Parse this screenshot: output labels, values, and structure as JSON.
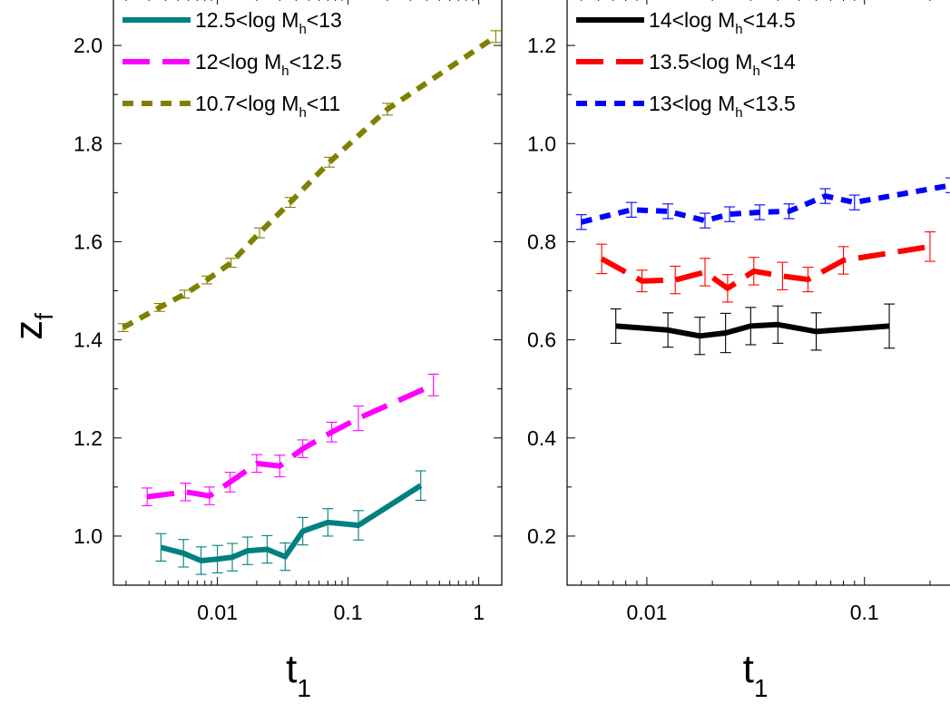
{
  "chart_data": [
    {
      "type": "line",
      "panel": "left",
      "xscale": "log",
      "xlim": [
        0.0016,
        1.5
      ],
      "ylim": [
        0.9,
        2.1
      ],
      "xticks": [
        0.01,
        0.1,
        1
      ],
      "xtick_labels": [
        "0.01",
        "0.1",
        "1"
      ],
      "yticks": [
        1.0,
        1.2,
        1.4,
        1.6,
        1.8,
        2.0
      ],
      "ytick_labels": [
        "1.0",
        "1.2",
        "1.4",
        "1.6",
        "1.8",
        "2.0"
      ],
      "xlabel": {
        "main": "t",
        "sub": "1"
      },
      "ylabel": {
        "main": "z",
        "sub": "f"
      },
      "legend_placement": "top-left",
      "series": [
        {
          "name": {
            "pre": "12.5<log M",
            "sub": "h",
            "post": "<13"
          },
          "color": "#008080",
          "dash": "solid",
          "x": [
            0.0037,
            0.0055,
            0.0075,
            0.01,
            0.013,
            0.017,
            0.024,
            0.033,
            0.045,
            0.07,
            0.12,
            0.36
          ],
          "y": [
            0.977,
            0.965,
            0.95,
            0.953,
            0.957,
            0.97,
            0.973,
            0.958,
            1.01,
            1.028,
            1.022,
            1.103
          ],
          "err": [
            0.028,
            0.028,
            0.028,
            0.028,
            0.028,
            0.028,
            0.028,
            0.028,
            0.028,
            0.028,
            0.03,
            0.03
          ]
        },
        {
          "name": {
            "pre": "12<log M",
            "sub": "h",
            "post": "<12.5"
          },
          "color": "#ff00ff",
          "dash": "long-dash",
          "x": [
            0.0029,
            0.0057,
            0.0087,
            0.0125,
            0.02,
            0.03,
            0.045,
            0.075,
            0.12,
            0.45
          ],
          "y": [
            1.08,
            1.09,
            1.082,
            1.11,
            1.148,
            1.143,
            1.178,
            1.212,
            1.24,
            1.308
          ],
          "err": [
            0.018,
            0.018,
            0.018,
            0.02,
            0.018,
            0.022,
            0.018,
            0.02,
            0.025,
            0.022
          ]
        },
        {
          "name": {
            "pre": "10.7<log M",
            "sub": "h",
            "post": "<11"
          },
          "color": "#808000",
          "dash": "short-dash",
          "x": [
            0.0019,
            0.0036,
            0.0056,
            0.0083,
            0.0127,
            0.021,
            0.036,
            0.072,
            0.2,
            1.35
          ],
          "y": [
            1.425,
            1.466,
            1.493,
            1.522,
            1.557,
            1.618,
            1.68,
            1.762,
            1.87,
            2.018
          ],
          "err": [
            0.008,
            0.008,
            0.008,
            0.008,
            0.009,
            0.01,
            0.01,
            0.01,
            0.012,
            0.012
          ]
        }
      ]
    },
    {
      "type": "line",
      "panel": "right",
      "xscale": "log",
      "xlim": [
        0.0043,
        0.28
      ],
      "ylim": [
        0.1,
        1.3
      ],
      "xticks": [
        0.01,
        0.1
      ],
      "xtick_labels": [
        "0.01",
        "0.1"
      ],
      "yticks": [
        0.2,
        0.4,
        0.6,
        0.8,
        1.0,
        1.2
      ],
      "ytick_labels": [
        "0.2",
        "0.4",
        "0.6",
        "0.8",
        "1.0",
        "1.2"
      ],
      "xlabel": {
        "main": "t",
        "sub": "1"
      },
      "legend_placement": "top-left",
      "series": [
        {
          "name": {
            "pre": "14<log M",
            "sub": "h",
            "post": "<14.5"
          },
          "color": "#000000",
          "dash": "solid",
          "x": [
            0.0072,
            0.0125,
            0.0175,
            0.023,
            0.03,
            0.04,
            0.06,
            0.13
          ],
          "y": [
            0.628,
            0.62,
            0.608,
            0.614,
            0.628,
            0.631,
            0.617,
            0.628
          ],
          "err": [
            0.035,
            0.035,
            0.038,
            0.04,
            0.038,
            0.038,
            0.038,
            0.045
          ]
        },
        {
          "name": {
            "pre": "13.5<log M",
            "sub": "h",
            "post": "<14"
          },
          "color": "#ff0000",
          "dash": "long-dash",
          "x": [
            0.0062,
            0.0095,
            0.0135,
            0.0185,
            0.0235,
            0.031,
            0.042,
            0.055,
            0.08,
            0.2
          ],
          "y": [
            0.765,
            0.72,
            0.722,
            0.738,
            0.705,
            0.74,
            0.73,
            0.723,
            0.762,
            0.79
          ],
          "err": [
            0.03,
            0.022,
            0.028,
            0.028,
            0.028,
            0.028,
            0.028,
            0.025,
            0.028,
            0.03
          ]
        },
        {
          "name": {
            "pre": "13<log M",
            "sub": "h",
            "post": "<13.5"
          },
          "color": "#0000ff",
          "dash": "short-dash",
          "x": [
            0.005,
            0.0085,
            0.0125,
            0.0185,
            0.024,
            0.033,
            0.045,
            0.066,
            0.09,
            0.25
          ],
          "y": [
            0.84,
            0.865,
            0.862,
            0.843,
            0.856,
            0.86,
            0.862,
            0.893,
            0.88,
            0.915
          ],
          "err": [
            0.015,
            0.015,
            0.015,
            0.015,
            0.015,
            0.015,
            0.015,
            0.015,
            0.015,
            0.015
          ]
        }
      ]
    }
  ]
}
